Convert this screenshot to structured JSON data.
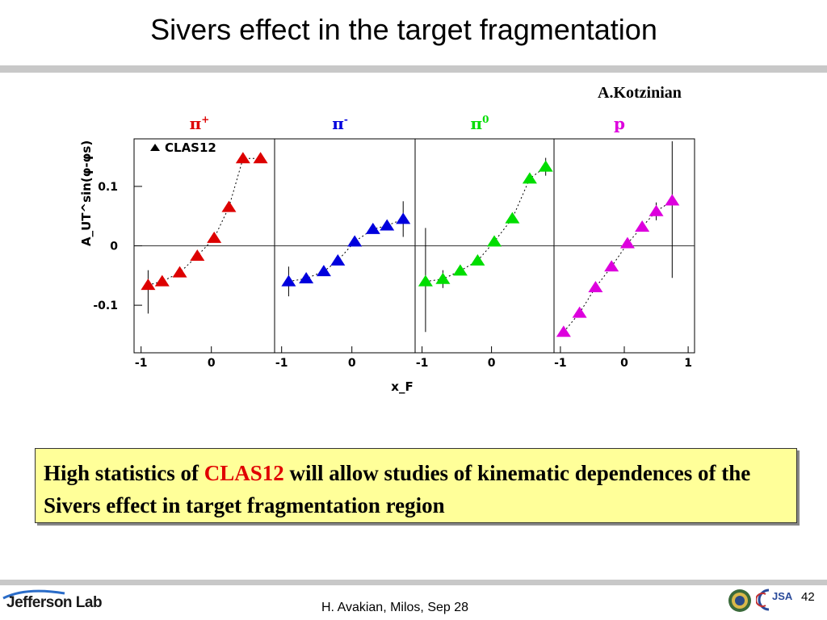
{
  "slide": {
    "title": "Sivers effect in the target fragmentation",
    "author": "A.Kotzinian"
  },
  "chart_data": {
    "type": "scatter",
    "ylabel": "A_UT^sin(φ-φs)",
    "xlabel": "x_F",
    "legend_label": "CLAS12",
    "legend_placement": "top-left",
    "ylim": [
      -0.18,
      0.18
    ],
    "yticks": [
      {
        "value": 0.1,
        "label": "0.1"
      },
      {
        "value": 0,
        "label": "0"
      },
      {
        "value": -0.1,
        "label": "-0.1"
      }
    ],
    "zero_line": true,
    "panels": [
      {
        "label": "π+",
        "label_base": "π",
        "label_sup": "+",
        "color": "#dd0000",
        "xlim": [
          -1.1,
          0.9
        ],
        "xticks": [
          {
            "value": -1,
            "label": "-1"
          },
          {
            "value": 0,
            "label": "0"
          }
        ],
        "points": [
          {
            "x": -0.9,
            "y": -0.066,
            "err_low": 0.048,
            "err_high": 0.025
          },
          {
            "x": -0.7,
            "y": -0.06
          },
          {
            "x": -0.45,
            "y": -0.045
          },
          {
            "x": -0.2,
            "y": -0.017
          },
          {
            "x": 0.04,
            "y": 0.013
          },
          {
            "x": 0.25,
            "y": 0.065
          },
          {
            "x": 0.45,
            "y": 0.147
          },
          {
            "x": 0.7,
            "y": 0.147
          }
        ]
      },
      {
        "label": "π-",
        "label_base": "π",
        "label_sup": "-",
        "color": "#0000dd",
        "xlim": [
          -1.1,
          0.9
        ],
        "xticks": [
          {
            "value": -1,
            "label": "-1"
          },
          {
            "value": 0,
            "label": "0"
          }
        ],
        "points": [
          {
            "x": -0.9,
            "y": -0.06,
            "err_low": 0.025,
            "err_high": 0.025
          },
          {
            "x": -0.65,
            "y": -0.055
          },
          {
            "x": -0.4,
            "y": -0.043
          },
          {
            "x": -0.2,
            "y": -0.025
          },
          {
            "x": 0.04,
            "y": 0.007
          },
          {
            "x": 0.3,
            "y": 0.028
          },
          {
            "x": 0.5,
            "y": 0.034
          },
          {
            "x": 0.73,
            "y": 0.045,
            "err_low": 0.03,
            "err_high": 0.03
          }
        ]
      },
      {
        "label": "π0",
        "label_base": "π",
        "label_sup": "0",
        "color": "#00dd00",
        "xlim": [
          -1.1,
          0.9
        ],
        "xticks": [
          {
            "value": -1,
            "label": "-1"
          },
          {
            "value": 0,
            "label": "0"
          }
        ],
        "points": [
          {
            "x": -0.95,
            "y": -0.06,
            "err_low": 0.085,
            "err_high": 0.09
          },
          {
            "x": -0.7,
            "y": -0.056,
            "err_low": 0.015,
            "err_high": 0.015
          },
          {
            "x": -0.45,
            "y": -0.042
          },
          {
            "x": -0.2,
            "y": -0.025
          },
          {
            "x": 0.04,
            "y": 0.007
          },
          {
            "x": 0.3,
            "y": 0.046
          },
          {
            "x": 0.55,
            "y": 0.113
          },
          {
            "x": 0.78,
            "y": 0.133,
            "err_low": 0.015,
            "err_high": 0.015
          }
        ]
      },
      {
        "label": "p",
        "label_base": "p",
        "label_sup": "",
        "color": "#dd00dd",
        "xlim": [
          -1.1,
          1.1
        ],
        "xticks": [
          {
            "value": -1,
            "label": "-1"
          },
          {
            "value": 0,
            "label": "0"
          },
          {
            "value": 1,
            "label": "1"
          }
        ],
        "points": [
          {
            "x": -0.95,
            "y": -0.145
          },
          {
            "x": -0.7,
            "y": -0.113
          },
          {
            "x": -0.45,
            "y": -0.07
          },
          {
            "x": -0.2,
            "y": -0.035
          },
          {
            "x": 0.05,
            "y": 0.004
          },
          {
            "x": 0.28,
            "y": 0.032
          },
          {
            "x": 0.5,
            "y": 0.058,
            "err_low": 0.015,
            "err_high": 0.015
          },
          {
            "x": 0.75,
            "y": 0.076,
            "err_low": 0.13,
            "err_high": 0.1
          }
        ]
      }
    ]
  },
  "note": {
    "prefix": "High statistics of ",
    "highlight": "CLAS12",
    "suffix": " will allow studies of kinematic dependences of the Sivers effect in target fragmentation region"
  },
  "footer": {
    "lab_logo": "Jefferson Lab",
    "text": "H. Avakian, Milos,  Sep 28",
    "page": "42",
    "jsa_logo": "JSA"
  },
  "icons": {
    "seal": "doe-seal-icon",
    "jsa": "jsa-logo"
  }
}
